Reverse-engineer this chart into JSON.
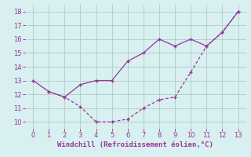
{
  "line1_x": [
    0,
    1,
    2,
    3,
    4,
    5,
    6,
    7,
    8,
    9,
    10,
    11,
    12,
    13
  ],
  "line1_y": [
    13.0,
    12.2,
    11.8,
    12.7,
    13.0,
    13.0,
    14.4,
    15.0,
    16.0,
    15.5,
    16.0,
    15.5,
    16.5,
    18.0
  ],
  "line2_x": [
    1,
    2,
    3,
    4,
    5,
    6,
    7,
    8,
    9,
    10,
    11,
    12,
    13
  ],
  "line2_y": [
    12.2,
    11.8,
    11.1,
    10.0,
    10.0,
    10.2,
    11.0,
    11.6,
    11.8,
    13.6,
    15.5,
    16.5,
    18.0
  ],
  "line_color": "#993399",
  "background_color": "#d8f0f0",
  "grid_color": "#b8cece",
  "xlabel": "Windchill (Refroidissement éolien,°C)",
  "xlim": [
    -0.5,
    13.5
  ],
  "ylim": [
    9.5,
    18.5
  ],
  "xticks": [
    0,
    1,
    2,
    3,
    4,
    5,
    6,
    7,
    8,
    9,
    10,
    11,
    12,
    13
  ],
  "yticks": [
    10,
    11,
    12,
    13,
    14,
    15,
    16,
    17,
    18
  ],
  "xlabel_color": "#993399",
  "tick_color": "#993399",
  "tick_fontsize": 6,
  "label_fontsize": 6.5
}
